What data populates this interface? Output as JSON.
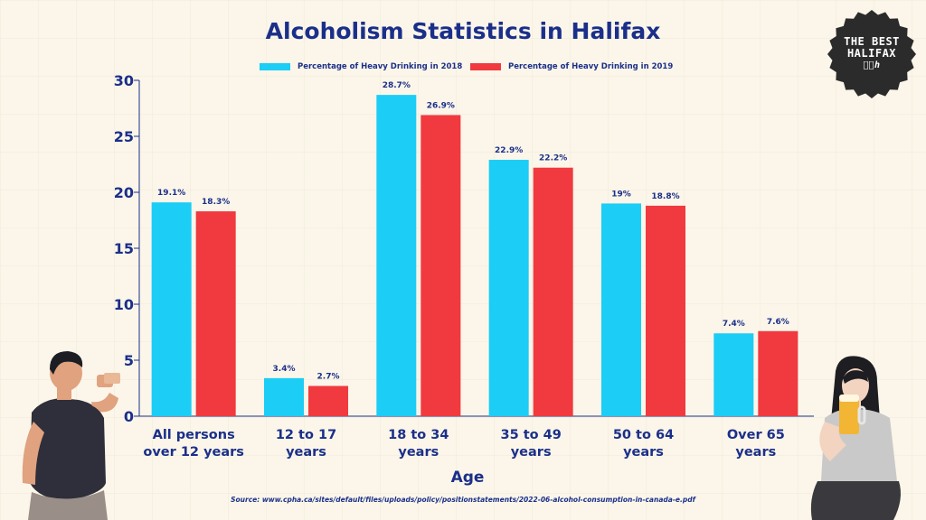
{
  "title": "Alcoholism Statistics in Halifax",
  "badge": {
    "line1": "THE BEST",
    "line2": "HALIFAX",
    "line3": "ㄴ͂ℎ"
  },
  "source": "Source: www.cpha.ca/sites/default/files/uploads/policy/positionstatements/2022-06-alcohol-consumption-in-canada-e.pdf",
  "colors": {
    "series2018": "#1ccdf5",
    "series2019": "#f03a3f",
    "text": "#1b2f8a",
    "axis": "#1b2f8a"
  },
  "chart_data": {
    "type": "bar",
    "title": "Alcoholism Statistics in Halifax",
    "xlabel": "Age",
    "ylabel": "",
    "ylim": [
      0,
      30
    ],
    "yticks": [
      0,
      5,
      10,
      15,
      20,
      25,
      30
    ],
    "categories": [
      [
        "All persons",
        "over 12 years"
      ],
      [
        "12 to 17",
        "years"
      ],
      [
        "18 to 34",
        "years"
      ],
      [
        "35 to 49",
        "years"
      ],
      [
        "50 to 64",
        "years"
      ],
      [
        "Over 65",
        "years"
      ]
    ],
    "series": [
      {
        "name": "Percentage of Heavy Drinking in 2018",
        "values": [
          19.1,
          3.4,
          28.7,
          22.9,
          19,
          7.4
        ],
        "labels": [
          "19.1%",
          "3.4%",
          "28.7%",
          "22.9%",
          "19%",
          "7.4%"
        ]
      },
      {
        "name": "Percentage of Heavy Drinking in 2019",
        "values": [
          18.3,
          2.7,
          26.9,
          22.2,
          18.8,
          7.6
        ],
        "labels": [
          "18.3%",
          "2.7%",
          "26.9%",
          "22.2%",
          "18.8%",
          "7.6%"
        ]
      }
    ],
    "grid": false,
    "legend": "top-center"
  }
}
